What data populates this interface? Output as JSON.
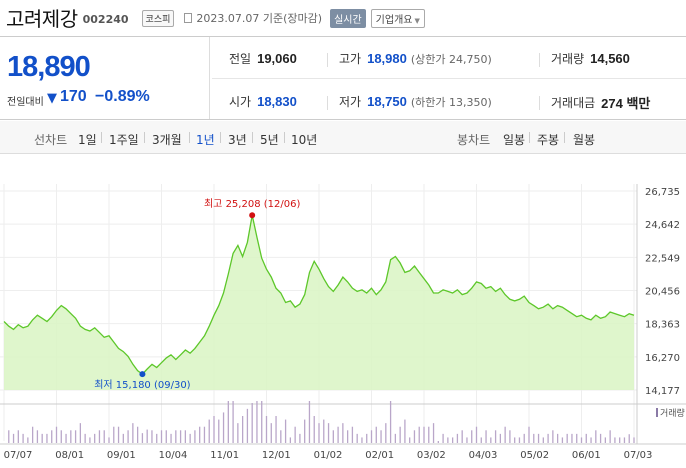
{
  "header": {
    "company": "고려제강",
    "code": "002240",
    "market": "코스피",
    "asof": "2023.07.07 기준(장마감)",
    "realtime_btn": "실시간",
    "company_info_btn": "기업개요"
  },
  "quote": {
    "price": "18,890",
    "change_label": "전일대비",
    "change_arrow": "▼",
    "change": "170",
    "change_pct": "−0.89%"
  },
  "stats": {
    "prev_close": {
      "label": "전일",
      "value": "19,060"
    },
    "high": {
      "label": "고가",
      "value": "18,980",
      "sub": "(상한가 24,750)"
    },
    "volume": {
      "label": "거래량",
      "value": "14,560"
    },
    "open": {
      "label": "시가",
      "value": "18,830"
    },
    "low": {
      "label": "저가",
      "value": "18,750",
      "sub": "(하한가 13,350)"
    },
    "amount": {
      "label": "거래대금",
      "value": "274 백만"
    }
  },
  "period_bar": {
    "line_label": "선차트",
    "line_options": [
      "1일",
      "1주일",
      "3개월",
      "1년",
      "3년",
      "5년",
      "10년"
    ],
    "selected": "1년",
    "candle_label": "봉차트",
    "candle_options": [
      "일봉",
      "주봉",
      "월봉"
    ]
  },
  "colors": {
    "price_line": "#5dc72a",
    "area_fill": "#d9f4c3",
    "down": "#1250c9",
    "up": "#d11111",
    "volume_bar": "#b9a6c9"
  },
  "chart_data": {
    "type": "area",
    "y_ticks": [
      "26,735",
      "24,642",
      "22,549",
      "20,456",
      "18,363",
      "16,270",
      "14,177"
    ],
    "ylim": [
      14177,
      26735
    ],
    "x_labels": [
      "07/07",
      "08/01",
      "09/01",
      "10/04",
      "11/01",
      "12/01",
      "01/02",
      "02/01",
      "03/02",
      "04/03",
      "05/02",
      "06/01",
      "07/03"
    ],
    "high_annotation": "최고 25,208 (12/06)",
    "low_annotation": "최저 15,180 (09/30)",
    "volume_legend": "거래량",
    "series": [
      {
        "values": [
          18500,
          18200,
          18000,
          18300,
          18100,
          18200,
          18600,
          18900,
          18700,
          18500,
          18800,
          19200,
          19500,
          19300,
          19000,
          18700,
          18200,
          18000,
          17900,
          18100,
          17800,
          17500,
          17600,
          17200,
          16800,
          16600,
          16300,
          15800,
          15400,
          15180,
          15500,
          15800,
          15600,
          15900,
          16200,
          16400,
          16100,
          16400,
          16700,
          16500,
          16800,
          17200,
          17600,
          18200,
          18900,
          19500,
          20300,
          21500,
          22800,
          23300,
          22600,
          23500,
          25208,
          23800,
          22500,
          21800,
          21300,
          20600,
          20300,
          19700,
          19800,
          19400,
          19600,
          20200,
          21600,
          22300,
          21800,
          21200,
          20700,
          20400,
          20800,
          21300,
          21000,
          20600,
          20400,
          20500,
          20300,
          20600,
          20200,
          20500,
          21000,
          22400,
          22600,
          22200,
          21600,
          21700,
          22000,
          21600,
          21200,
          20800,
          20300,
          20300,
          20500,
          20400,
          20300,
          20500,
          20200,
          20300,
          20600,
          21000,
          20900,
          20600,
          20700,
          20400,
          20600,
          20200,
          19900,
          19800,
          19900,
          20100,
          19700,
          19500,
          19300,
          19400,
          19600,
          19300,
          19500,
          19400,
          19200,
          19000,
          18800,
          18900,
          18700,
          18600,
          18900,
          18700,
          18800,
          19100,
          19000,
          18900,
          18800,
          18990,
          18890
        ]
      }
    ]
  }
}
